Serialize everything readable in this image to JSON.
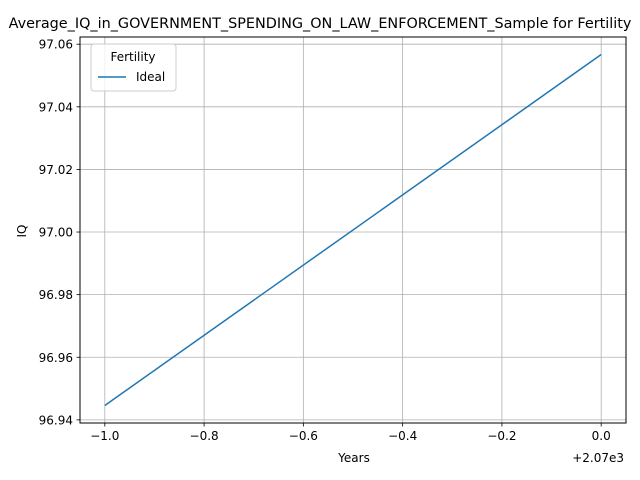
{
  "chart_data": {
    "type": "line",
    "title": "Average_IQ_in_GOVERNMENT_SPENDING_ON_LAW_ENFORCEMENT_Sample for Fertility",
    "xlabel": "Years",
    "ylabel": "IQ",
    "x_offset_label": "+2.07e3",
    "x_tick_labels": [
      "−1.0",
      "−0.8",
      "−0.6",
      "−0.4",
      "−0.2",
      "0.0"
    ],
    "y_tick_labels": [
      "96.94",
      "96.96",
      "96.98",
      "97.00",
      "97.02",
      "97.04",
      "97.06"
    ],
    "xlim": [
      2068.95,
      2070.05
    ],
    "ylim": [
      96.939,
      97.0623
    ],
    "grid": true,
    "legend": {
      "title": "Fertility",
      "position": "top-left"
    },
    "series": [
      {
        "name": "Ideal",
        "color": "#1f77b4",
        "x": [
          2069,
          2070
        ],
        "y": [
          96.9446,
          97.0567
        ]
      }
    ]
  }
}
